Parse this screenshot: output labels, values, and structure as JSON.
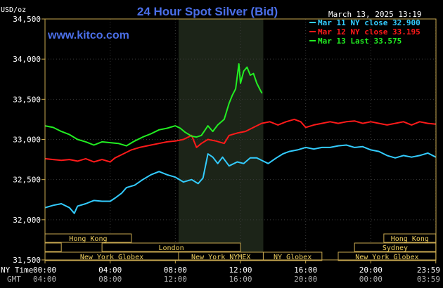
{
  "chart_data": {
    "type": "line",
    "title": "24 Hour Spot Silver (Bid)",
    "website": "www.kitco.com",
    "timestamp": "March 13, 2025 13:19",
    "ylabel": "USD/oz",
    "ylim": [
      31.5,
      34.5
    ],
    "yticks": [
      "34,500",
      "34,000",
      "33,500",
      "33,000",
      "32,500",
      "32,000",
      "31,500"
    ],
    "ny_time_label": "NY Time",
    "gmt_label": "GMT",
    "x_ticks_ny": [
      "00:00",
      "04:00",
      "08:00",
      "12:00",
      "16:00",
      "20:00",
      "23:59"
    ],
    "x_ticks_gmt": [
      "04:00",
      "08:00",
      "12:00",
      "16:00",
      "20:00",
      "00:00",
      "03:59"
    ],
    "grid": true,
    "legend_position": "top-right",
    "colors": {
      "cyan": "#33ccff",
      "red": "#ff1a1a",
      "green": "#22ee22",
      "axis": "#c8a850",
      "market_text": "#f0d060",
      "title": "#4b6fe8"
    },
    "highlight_hours": [
      8.2,
      13.4
    ],
    "series": [
      {
        "name": "Mar 11 NY close 32.900",
        "color": "#33ccff",
        "points": [
          [
            0,
            32.15
          ],
          [
            0.5,
            32.18
          ],
          [
            1,
            32.2
          ],
          [
            1.5,
            32.15
          ],
          [
            1.8,
            32.08
          ],
          [
            2,
            32.17
          ],
          [
            2.5,
            32.2
          ],
          [
            3,
            32.24
          ],
          [
            3.5,
            32.23
          ],
          [
            4,
            32.23
          ],
          [
            4.3,
            32.27
          ],
          [
            4.7,
            32.33
          ],
          [
            5,
            32.4
          ],
          [
            5.5,
            32.43
          ],
          [
            6,
            32.5
          ],
          [
            6.5,
            32.56
          ],
          [
            7,
            32.6
          ],
          [
            7.5,
            32.56
          ],
          [
            8,
            32.53
          ],
          [
            8.5,
            32.47
          ],
          [
            9,
            32.5
          ],
          [
            9.4,
            32.45
          ],
          [
            9.7,
            32.52
          ],
          [
            10,
            32.82
          ],
          [
            10.3,
            32.78
          ],
          [
            10.6,
            32.7
          ],
          [
            10.9,
            32.78
          ],
          [
            11.3,
            32.67
          ],
          [
            11.8,
            32.72
          ],
          [
            12.2,
            32.7
          ],
          [
            12.6,
            32.77
          ],
          [
            13,
            32.77
          ],
          [
            13.4,
            32.73
          ],
          [
            13.7,
            32.7
          ],
          [
            14.2,
            32.77
          ],
          [
            14.6,
            32.82
          ],
          [
            15,
            32.85
          ],
          [
            15.5,
            32.87
          ],
          [
            16,
            32.9
          ],
          [
            16.5,
            32.88
          ],
          [
            17,
            32.9
          ],
          [
            17.5,
            32.9
          ],
          [
            18,
            32.92
          ],
          [
            18.5,
            32.93
          ],
          [
            19,
            32.9
          ],
          [
            19.5,
            32.91
          ],
          [
            20,
            32.87
          ],
          [
            20.5,
            32.85
          ],
          [
            21,
            32.8
          ],
          [
            21.5,
            32.77
          ],
          [
            22,
            32.8
          ],
          [
            22.5,
            32.78
          ],
          [
            23,
            32.8
          ],
          [
            23.5,
            32.83
          ],
          [
            23.99,
            32.78
          ]
        ]
      },
      {
        "name": "Mar 12 NY close 33.195",
        "color": "#ff1a1a",
        "points": [
          [
            0,
            32.76
          ],
          [
            0.5,
            32.75
          ],
          [
            1,
            32.74
          ],
          [
            1.5,
            32.75
          ],
          [
            2,
            32.73
          ],
          [
            2.5,
            32.76
          ],
          [
            3,
            32.72
          ],
          [
            3.5,
            32.75
          ],
          [
            4,
            32.72
          ],
          [
            4.3,
            32.77
          ],
          [
            4.8,
            32.82
          ],
          [
            5.3,
            32.87
          ],
          [
            5.8,
            32.9
          ],
          [
            6.5,
            32.93
          ],
          [
            7,
            32.95
          ],
          [
            7.5,
            32.97
          ],
          [
            8,
            32.98
          ],
          [
            8.5,
            33.0
          ],
          [
            9,
            33.05
          ],
          [
            9.3,
            32.9
          ],
          [
            9.6,
            32.95
          ],
          [
            10,
            33.0
          ],
          [
            10.5,
            32.98
          ],
          [
            11,
            32.95
          ],
          [
            11.3,
            33.05
          ],
          [
            11.8,
            33.08
          ],
          [
            12.3,
            33.1
          ],
          [
            12.8,
            33.15
          ],
          [
            13.3,
            33.2
          ],
          [
            13.8,
            33.22
          ],
          [
            14.3,
            33.18
          ],
          [
            14.8,
            33.22
          ],
          [
            15.3,
            33.25
          ],
          [
            15.7,
            33.22
          ],
          [
            16,
            33.15
          ],
          [
            16.5,
            33.18
          ],
          [
            17,
            33.2
          ],
          [
            17.5,
            33.22
          ],
          [
            18,
            33.2
          ],
          [
            18.5,
            33.22
          ],
          [
            19,
            33.23
          ],
          [
            19.5,
            33.2
          ],
          [
            20,
            33.22
          ],
          [
            20.5,
            33.2
          ],
          [
            21,
            33.18
          ],
          [
            21.5,
            33.2
          ],
          [
            22,
            33.22
          ],
          [
            22.5,
            33.18
          ],
          [
            23,
            33.22
          ],
          [
            23.5,
            33.2
          ],
          [
            23.99,
            33.19
          ]
        ]
      },
      {
        "name": "Mar 13 Last 33.575",
        "color": "#22ee22",
        "points": [
          [
            0,
            33.17
          ],
          [
            0.5,
            33.15
          ],
          [
            1,
            33.1
          ],
          [
            1.5,
            33.06
          ],
          [
            2,
            33.0
          ],
          [
            2.5,
            32.97
          ],
          [
            3,
            32.93
          ],
          [
            3.5,
            32.97
          ],
          [
            4,
            32.96
          ],
          [
            4.5,
            32.95
          ],
          [
            5,
            32.92
          ],
          [
            5.5,
            32.98
          ],
          [
            6,
            33.03
          ],
          [
            6.5,
            33.07
          ],
          [
            7,
            33.12
          ],
          [
            7.5,
            33.14
          ],
          [
            8,
            33.17
          ],
          [
            8.3,
            33.14
          ],
          [
            8.6,
            33.09
          ],
          [
            9,
            33.04
          ],
          [
            9.3,
            33.03
          ],
          [
            9.6,
            33.05
          ],
          [
            10,
            33.17
          ],
          [
            10.3,
            33.1
          ],
          [
            10.6,
            33.18
          ],
          [
            11,
            33.25
          ],
          [
            11.3,
            33.45
          ],
          [
            11.5,
            33.55
          ],
          [
            11.7,
            33.63
          ],
          [
            11.9,
            33.94
          ],
          [
            12,
            33.7
          ],
          [
            12.2,
            33.85
          ],
          [
            12.4,
            33.9
          ],
          [
            12.6,
            33.8
          ],
          [
            12.8,
            33.82
          ],
          [
            13,
            33.7
          ],
          [
            13.2,
            33.62
          ],
          [
            13.32,
            33.575
          ]
        ]
      }
    ],
    "market_rows": [
      [
        {
          "label": "Hong Kong",
          "start": 0,
          "end": 5.3
        },
        {
          "label": "Hong Kong",
          "start": 20.8,
          "end": 23.99
        }
      ],
      [
        {
          "label": "",
          "start": 0,
          "end": 1.0
        },
        {
          "label": "London",
          "start": 3.5,
          "end": 12.0
        },
        {
          "label": "Sydney",
          "start": 19.0,
          "end": 23.99
        }
      ],
      [
        {
          "label": "New York Globex",
          "start": 0,
          "end": 8.2
        },
        {
          "label": "New York NYMEX",
          "start": 8.2,
          "end": 13.4
        },
        {
          "label": "NY Globex",
          "start": 13.4,
          "end": 17.0
        },
        {
          "label": "New York Globex",
          "start": 18.0,
          "end": 23.99
        }
      ]
    ]
  }
}
